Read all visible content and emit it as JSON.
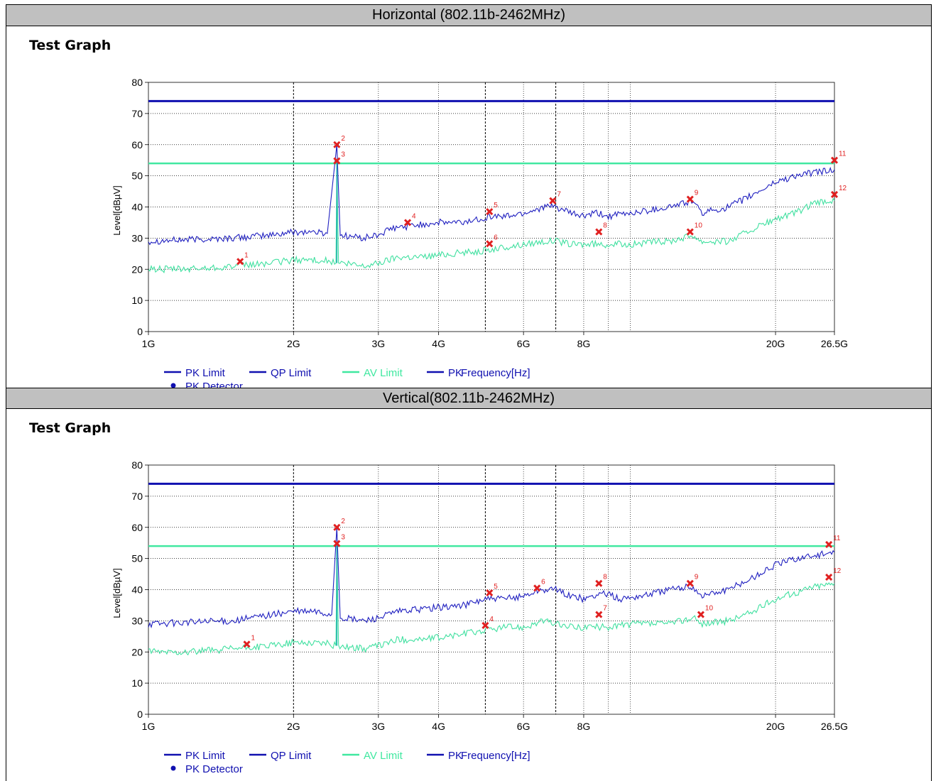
{
  "sections": [
    {
      "header": "Horizontal (802.11b-2462MHz)",
      "graph_title": "Test Graph"
    },
    {
      "header": "Vertical(802.11b-2462MHz)",
      "graph_title": "Test Graph"
    }
  ],
  "colors": {
    "pk_trace": "#2020c0",
    "av_trace": "#40e0a0",
    "pk_limit": "#1010b0",
    "av_limit": "#40e8a0",
    "marker": "#e02020",
    "grid": "#000000",
    "header_bg": "#c0c0c0"
  },
  "chart_data": [
    {
      "type": "line",
      "xscale": "log",
      "xlim": [
        "1G",
        "26.5G"
      ],
      "ylim": [
        0,
        80
      ],
      "ylabel": "Level[dBµV]",
      "xlabel": "Frequency[Hz]",
      "yticks": [
        "0",
        "10",
        "20",
        "30",
        "40",
        "50",
        "60",
        "70",
        "80"
      ],
      "xticks": [
        {
          "label": "1G",
          "ghz": 1
        },
        {
          "label": "2G",
          "ghz": 2
        },
        {
          "label": "3G",
          "ghz": 3
        },
        {
          "label": "4G",
          "ghz": 4
        },
        {
          "label": "6G",
          "ghz": 6
        },
        {
          "label": "8G",
          "ghz": 8
        },
        {
          "label": "20G",
          "ghz": 20
        },
        {
          "label": "26.5G",
          "ghz": 26.5
        }
      ],
      "legend": [
        "PK Limit",
        "QP Limit",
        "AV Limit",
        "PK",
        "PK Detector"
      ],
      "limits": [
        {
          "name": "PK Limit",
          "value": 74
        },
        {
          "name": "AV Limit",
          "value": 54
        }
      ],
      "series": [
        {
          "name": "PK",
          "points": [
            [
              1,
              29
            ],
            [
              1.2,
              29.5
            ],
            [
              1.5,
              30
            ],
            [
              1.8,
              31
            ],
            [
              2.0,
              32
            ],
            [
              2.2,
              32
            ],
            [
              2.35,
              31.5
            ],
            [
              2.46,
              60
            ],
            [
              2.5,
              31
            ],
            [
              2.8,
              30
            ],
            [
              3.0,
              31
            ],
            [
              3.2,
              33
            ],
            [
              3.5,
              34
            ],
            [
              4.0,
              35
            ],
            [
              4.5,
              35
            ],
            [
              5.1,
              37
            ],
            [
              5.5,
              37
            ],
            [
              6.0,
              38
            ],
            [
              6.6,
              40
            ],
            [
              7.0,
              40
            ],
            [
              7.5,
              38
            ],
            [
              8.0,
              37
            ],
            [
              8.5,
              38
            ],
            [
              9.0,
              37
            ],
            [
              10.0,
              38
            ],
            [
              12.0,
              40
            ],
            [
              13.5,
              42
            ],
            [
              14.0,
              38
            ],
            [
              16.0,
              40
            ],
            [
              18.0,
              44
            ],
            [
              20.0,
              48
            ],
            [
              22.0,
              50
            ],
            [
              24.0,
              51
            ],
            [
              26.5,
              52
            ]
          ]
        },
        {
          "name": "AV",
          "points": [
            [
              1,
              20
            ],
            [
              1.2,
              20
            ],
            [
              1.5,
              21
            ],
            [
              1.8,
              22
            ],
            [
              2.0,
              23
            ],
            [
              2.3,
              23
            ],
            [
              2.45,
              22
            ],
            [
              2.46,
              55
            ],
            [
              2.48,
              22
            ],
            [
              2.8,
              21
            ],
            [
              3.0,
              22
            ],
            [
              3.3,
              24
            ],
            [
              3.7,
              24
            ],
            [
              4.2,
              25
            ],
            [
              5.0,
              26
            ],
            [
              5.5,
              27
            ],
            [
              6.0,
              28
            ],
            [
              6.6,
              29
            ],
            [
              7.0,
              29
            ],
            [
              7.5,
              28
            ],
            [
              8.0,
              28
            ],
            [
              9.0,
              28
            ],
            [
              10.0,
              28
            ],
            [
              12.0,
              29
            ],
            [
              13.5,
              31
            ],
            [
              14.0,
              29
            ],
            [
              16.0,
              29
            ],
            [
              18.0,
              33
            ],
            [
              20.0,
              36
            ],
            [
              22.0,
              38
            ],
            [
              24.0,
              41
            ],
            [
              26.5,
              42
            ]
          ]
        }
      ],
      "markers": [
        {
          "id": "1",
          "ghz": 1.55,
          "db": 22.5
        },
        {
          "id": "2",
          "ghz": 2.46,
          "db": 60.0
        },
        {
          "id": "3",
          "ghz": 2.46,
          "db": 54.8
        },
        {
          "id": "4",
          "ghz": 3.45,
          "db": 35.0
        },
        {
          "id": "5",
          "ghz": 5.1,
          "db": 38.5
        },
        {
          "id": "6",
          "ghz": 5.1,
          "db": 28.2
        },
        {
          "id": "7",
          "ghz": 6.9,
          "db": 42.0
        },
        {
          "id": "8",
          "ghz": 8.6,
          "db": 32.0
        },
        {
          "id": "9",
          "ghz": 13.3,
          "db": 42.5
        },
        {
          "id": "10",
          "ghz": 13.3,
          "db": 32.0
        },
        {
          "id": "11",
          "ghz": 26.5,
          "db": 55.0
        },
        {
          "id": "12",
          "ghz": 26.5,
          "db": 44.0
        }
      ]
    },
    {
      "type": "line",
      "xscale": "log",
      "xlim": [
        "1G",
        "26.5G"
      ],
      "ylim": [
        0,
        80
      ],
      "ylabel": "Level[dBµV]",
      "xlabel": "Frequency[Hz]",
      "yticks": [
        "0",
        "10",
        "20",
        "30",
        "40",
        "50",
        "60",
        "70",
        "80"
      ],
      "xticks": [
        {
          "label": "1G",
          "ghz": 1
        },
        {
          "label": "2G",
          "ghz": 2
        },
        {
          "label": "3G",
          "ghz": 3
        },
        {
          "label": "4G",
          "ghz": 4
        },
        {
          "label": "6G",
          "ghz": 6
        },
        {
          "label": "8G",
          "ghz": 8
        },
        {
          "label": "20G",
          "ghz": 20
        },
        {
          "label": "26.5G",
          "ghz": 26.5
        }
      ],
      "legend": [
        "PK Limit",
        "QP Limit",
        "AV Limit",
        "PK",
        "PK Detector"
      ],
      "limits": [
        {
          "name": "PK Limit",
          "value": 74
        },
        {
          "name": "AV Limit",
          "value": 54
        }
      ],
      "series": [
        {
          "name": "PK",
          "points": [
            [
              1,
              29
            ],
            [
              1.2,
              29.5
            ],
            [
              1.5,
              30
            ],
            [
              1.8,
              32
            ],
            [
              2.0,
              33
            ],
            [
              2.2,
              33
            ],
            [
              2.4,
              32
            ],
            [
              2.46,
              60
            ],
            [
              2.5,
              31
            ],
            [
              2.8,
              30
            ],
            [
              3.0,
              31
            ],
            [
              3.3,
              33
            ],
            [
              3.8,
              34
            ],
            [
              4.5,
              35
            ],
            [
              5.0,
              37
            ],
            [
              5.5,
              37
            ],
            [
              6.0,
              38
            ],
            [
              6.5,
              40
            ],
            [
              7.0,
              40
            ],
            [
              7.5,
              38
            ],
            [
              8.0,
              37
            ],
            [
              8.8,
              39
            ],
            [
              9.5,
              37
            ],
            [
              10.5,
              38
            ],
            [
              12.0,
              40
            ],
            [
              13.5,
              41
            ],
            [
              14.0,
              38
            ],
            [
              16.0,
              40
            ],
            [
              18.0,
              44
            ],
            [
              20.0,
              48
            ],
            [
              22.0,
              50
            ],
            [
              24.0,
              51
            ],
            [
              26.5,
              52
            ]
          ]
        },
        {
          "name": "AV",
          "points": [
            [
              1,
              20
            ],
            [
              1.2,
              20
            ],
            [
              1.5,
              21
            ],
            [
              1.8,
              22
            ],
            [
              2.0,
              23
            ],
            [
              2.3,
              23
            ],
            [
              2.45,
              22
            ],
            [
              2.46,
              55
            ],
            [
              2.48,
              22
            ],
            [
              2.8,
              21
            ],
            [
              3.0,
              22
            ],
            [
              3.3,
              24
            ],
            [
              3.7,
              24
            ],
            [
              4.2,
              25
            ],
            [
              5.0,
              27
            ],
            [
              5.5,
              28
            ],
            [
              6.0,
              28
            ],
            [
              6.6,
              30
            ],
            [
              7.0,
              29
            ],
            [
              7.5,
              28
            ],
            [
              8.0,
              28
            ],
            [
              9.0,
              28
            ],
            [
              10.0,
              29
            ],
            [
              12.0,
              29
            ],
            [
              13.5,
              31
            ],
            [
              14.0,
              29
            ],
            [
              16.0,
              30
            ],
            [
              18.0,
              33
            ],
            [
              20.0,
              37
            ],
            [
              22.0,
              39
            ],
            [
              24.0,
              41
            ],
            [
              26.5,
              42
            ]
          ]
        }
      ],
      "markers": [
        {
          "id": "1",
          "ghz": 1.6,
          "db": 22.5
        },
        {
          "id": "2",
          "ghz": 2.46,
          "db": 60.0
        },
        {
          "id": "3",
          "ghz": 2.46,
          "db": 54.8
        },
        {
          "id": "4",
          "ghz": 5.0,
          "db": 28.5
        },
        {
          "id": "5",
          "ghz": 5.1,
          "db": 39.0
        },
        {
          "id": "6",
          "ghz": 6.4,
          "db": 40.5
        },
        {
          "id": "7",
          "ghz": 8.6,
          "db": 32.0
        },
        {
          "id": "8",
          "ghz": 8.6,
          "db": 42.0
        },
        {
          "id": "9",
          "ghz": 13.3,
          "db": 42.0
        },
        {
          "id": "10",
          "ghz": 14.0,
          "db": 32.0
        },
        {
          "id": "11",
          "ghz": 25.8,
          "db": 54.5
        },
        {
          "id": "12",
          "ghz": 25.8,
          "db": 44.0
        }
      ]
    }
  ]
}
